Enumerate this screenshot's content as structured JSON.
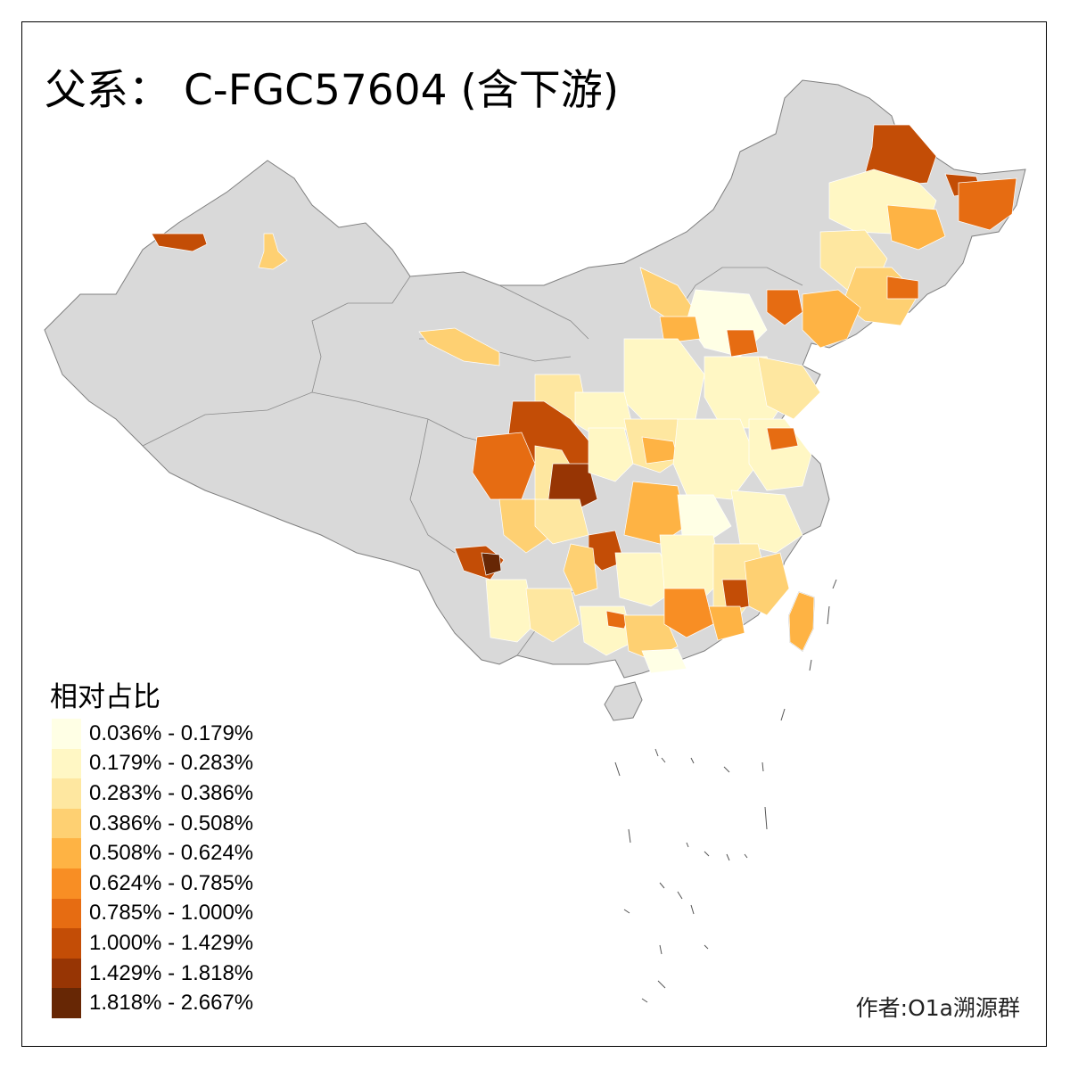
{
  "title": "父系： C-FGC57604 (含下游)",
  "legend": {
    "title": "相对占比",
    "items": [
      {
        "label": "0.036% - 0.179%",
        "color": "#ffffe5"
      },
      {
        "label": "0.179% - 0.283%",
        "color": "#fff7c4"
      },
      {
        "label": "0.283% - 0.386%",
        "color": "#fee7a0"
      },
      {
        "label": "0.386% - 0.508%",
        "color": "#fed072"
      },
      {
        "label": "0.508% - 0.624%",
        "color": "#feb344"
      },
      {
        "label": "0.624% - 0.785%",
        "color": "#f88e24"
      },
      {
        "label": "0.785% - 1.000%",
        "color": "#e66c12"
      },
      {
        "label": "1.000% - 1.429%",
        "color": "#c34d06"
      },
      {
        "label": "1.429% - 1.818%",
        "color": "#973504"
      },
      {
        "label": "1.818% - 2.667%",
        "color": "#672705"
      }
    ]
  },
  "author": "作者:O1a溯源群",
  "no_data_color": "#d9d9d9",
  "border_color": "#7f7f7f"
}
